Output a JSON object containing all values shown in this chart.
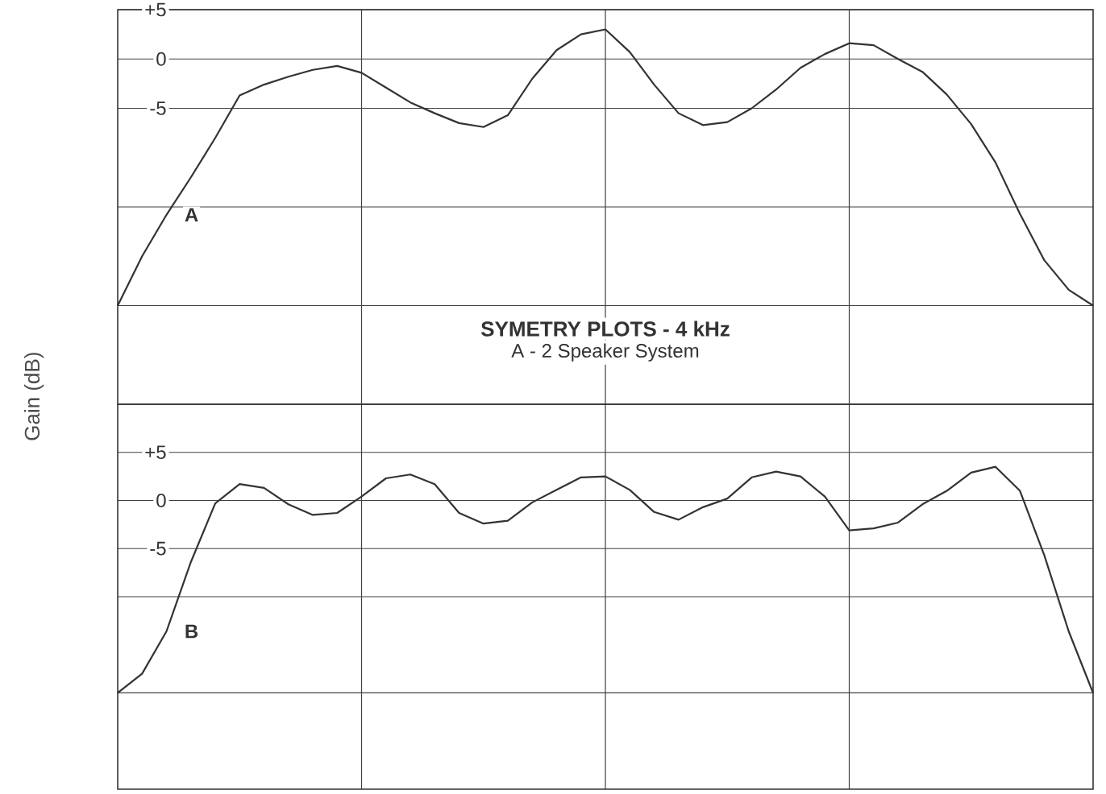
{
  "chart_data": [
    {
      "type": "line",
      "title": "SYMETRY PLOTS - 4 kHz",
      "subtitle": "A - 2 Speaker System",
      "ylabel": "Gain (dB)",
      "ylim": [
        -35,
        5
      ],
      "grid": true,
      "tick_labels": "y",
      "categories": [
        null,
        null,
        null,
        null,
        null,
        null,
        null,
        null,
        null,
        null,
        null,
        null,
        null,
        null,
        null,
        null,
        null,
        null,
        null,
        null,
        null,
        null,
        null,
        null,
        null,
        null,
        null,
        null,
        null,
        null,
        null,
        null,
        null,
        null,
        null,
        null,
        null,
        null,
        null,
        null,
        null
      ],
      "yticks": [
        {
          "value": 5,
          "label": "+5"
        },
        0,
        -5,
        {
          "value": -15,
          "label": null
        },
        {
          "value": -25,
          "label": null
        }
      ],
      "series": [
        {
          "name": "A",
          "color": "#333333",
          "values": [
            -25,
            -20.0,
            -15.8,
            -12.0,
            -8.0,
            -3.7,
            -2.6,
            -1.8,
            -1.1,
            -0.7,
            -1.4,
            -2.9,
            -4.4,
            -5.5,
            -6.5,
            -6.9,
            -5.7,
            -2.0,
            0.9,
            2.5,
            3.0,
            0.7,
            -2.6,
            -5.5,
            -6.7,
            -6.4,
            -5.0,
            -3.1,
            -0.9,
            0.5,
            1.6,
            1.4,
            0.0,
            -1.3,
            -3.6,
            -6.6,
            -10.5,
            -15.7,
            -20.4,
            -23.4,
            -25
          ]
        }
      ]
    },
    {
      "type": "line",
      "ylim": [
        -30,
        10
      ],
      "grid": true,
      "tick_labels": "y",
      "categories": [
        null,
        null,
        null,
        null,
        null,
        null,
        null,
        null,
        null,
        null,
        null,
        null,
        null,
        null,
        null,
        null,
        null,
        null,
        null,
        null,
        null,
        null,
        null,
        null,
        null,
        null,
        null,
        null,
        null,
        null,
        null,
        null,
        null,
        null,
        null,
        null,
        null,
        null,
        null,
        null,
        null
      ],
      "yticks": [
        {
          "value": 5,
          "label": "+5"
        },
        0,
        -5,
        {
          "value": -10,
          "label": null
        },
        {
          "value": -20,
          "label": null
        }
      ],
      "series": [
        {
          "name": "B",
          "color": "#333333",
          "values": [
            -20,
            -18.0,
            -13.6,
            -6.4,
            -0.3,
            1.7,
            1.3,
            -0.4,
            -1.5,
            -1.3,
            0.4,
            2.3,
            2.7,
            1.7,
            -1.3,
            -2.4,
            -2.1,
            -0.2,
            1.1,
            2.4,
            2.5,
            1.1,
            -1.2,
            -2.0,
            -0.7,
            0.2,
            2.4,
            3.0,
            2.5,
            0.4,
            -3.1,
            -2.9,
            -2.3,
            -0.4,
            1.0,
            2.9,
            3.5,
            1.0,
            -5.7,
            -13.6,
            -20
          ]
        }
      ]
    }
  ]
}
